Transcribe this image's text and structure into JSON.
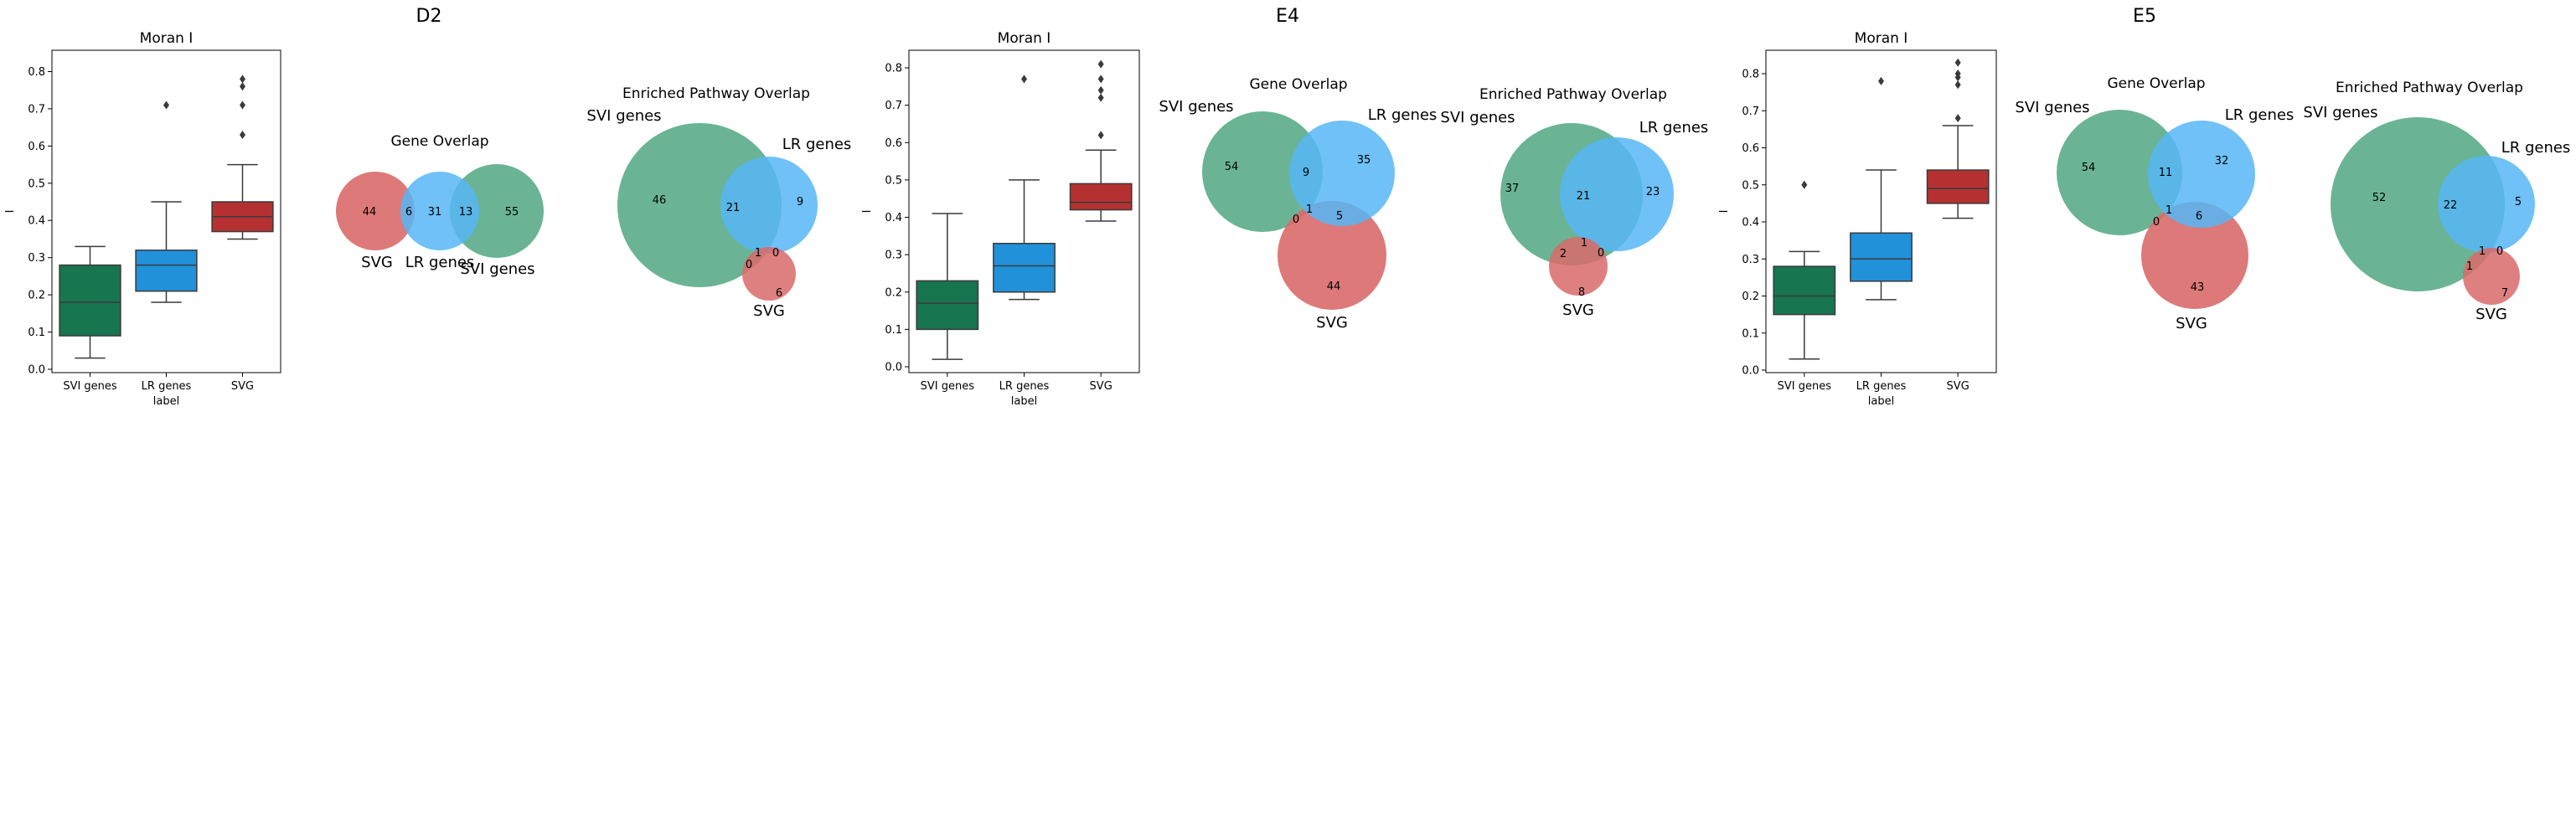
{
  "panels": [
    {
      "group_title": "D2",
      "boxplot": {
        "title": "Moran I",
        "xlabel": "label",
        "ylabel": "I",
        "yticks": [
          "0.0",
          "0.1",
          "0.2",
          "0.3",
          "0.4",
          "0.5",
          "0.6",
          "0.7",
          "0.8"
        ],
        "boxes": [
          {
            "category": "SVI genes",
            "whislo": 0.03,
            "q1": 0.09,
            "med": 0.18,
            "q3": 0.28,
            "whishi": 0.33,
            "fliers": []
          },
          {
            "category": "LR genes",
            "whislo": 0.18,
            "q1": 0.21,
            "med": 0.28,
            "q3": 0.32,
            "whishi": 0.45,
            "fliers": [
              0.71
            ]
          },
          {
            "category": "SVG",
            "whislo": 0.35,
            "q1": 0.37,
            "med": 0.41,
            "q3": 0.45,
            "whishi": 0.55,
            "fliers": [
              0.63,
              0.71,
              0.76,
              0.78
            ]
          }
        ]
      },
      "gene_overlap": {
        "title": "Gene Overlap",
        "labels": [
          "SVG",
          "LR genes",
          "SVI genes"
        ],
        "numbers": [
          "44",
          "6",
          "31",
          "13",
          "55"
        ]
      },
      "pathway_overlap": {
        "title": "Enriched Pathway Overlap",
        "labels": [
          "SVI genes",
          "LR genes",
          "SVG"
        ],
        "numbers": [
          "46",
          "21",
          "9",
          "1",
          "0",
          "0",
          "6"
        ]
      }
    },
    {
      "group_title": "E4",
      "boxplot": {
        "title": "Moran I",
        "xlabel": "label",
        "ylabel": "I",
        "yticks": [
          "0.0",
          "0.1",
          "0.2",
          "0.3",
          "0.4",
          "0.5",
          "0.6",
          "0.7",
          "0.8"
        ],
        "boxes": [
          {
            "category": "SVI genes",
            "whislo": 0.02,
            "q1": 0.1,
            "med": 0.17,
            "q3": 0.23,
            "whishi": 0.41,
            "fliers": []
          },
          {
            "category": "LR genes",
            "whislo": 0.18,
            "q1": 0.2,
            "med": 0.27,
            "q3": 0.33,
            "whishi": 0.5,
            "fliers": [
              0.77
            ]
          },
          {
            "category": "SVG",
            "whislo": 0.39,
            "q1": 0.42,
            "med": 0.44,
            "q3": 0.49,
            "whishi": 0.58,
            "fliers": [
              0.62,
              0.72,
              0.74,
              0.77,
              0.81
            ]
          }
        ]
      },
      "gene_overlap": {
        "title": "Gene Overlap",
        "labels": [
          "SVI genes",
          "LR genes",
          "SVG"
        ],
        "numbers": [
          "54",
          "9",
          "35",
          "1",
          "0",
          "5",
          "44"
        ]
      },
      "pathway_overlap": {
        "title": "Enriched Pathway Overlap",
        "labels": [
          "SVI genes",
          "LR genes",
          "SVG"
        ],
        "numbers": [
          "37",
          "21",
          "23",
          "2",
          "1",
          "0",
          "8"
        ]
      }
    },
    {
      "group_title": "E5",
      "boxplot": {
        "title": "Moran I",
        "xlabel": "label",
        "ylabel": "I",
        "yticks": [
          "0.0",
          "0.1",
          "0.2",
          "0.3",
          "0.4",
          "0.5",
          "0.6",
          "0.7",
          "0.8"
        ],
        "boxes": [
          {
            "category": "SVI genes",
            "whislo": 0.03,
            "q1": 0.15,
            "med": 0.2,
            "q3": 0.28,
            "whishi": 0.32,
            "fliers": [
              0.5
            ]
          },
          {
            "category": "LR genes",
            "whislo": 0.19,
            "q1": 0.24,
            "med": 0.3,
            "q3": 0.37,
            "whishi": 0.54,
            "fliers": [
              0.78
            ]
          },
          {
            "category": "SVG",
            "whislo": 0.41,
            "q1": 0.45,
            "med": 0.49,
            "q3": 0.54,
            "whishi": 0.66,
            "fliers": [
              0.68,
              0.77,
              0.79,
              0.8,
              0.83
            ]
          }
        ]
      },
      "gene_overlap": {
        "title": "Gene Overlap",
        "labels": [
          "SVI genes",
          "LR genes",
          "SVG"
        ],
        "numbers": [
          "54",
          "11",
          "32",
          "1",
          "0",
          "6",
          "43"
        ]
      },
      "pathway_overlap": {
        "title": "Enriched Pathway Overlap",
        "labels": [
          "SVI genes",
          "LR genes",
          "SVG"
        ],
        "numbers": [
          "52",
          "22",
          "5",
          "1",
          "1",
          "0",
          "7"
        ]
      }
    }
  ],
  "colors": {
    "svi_box": "#177550",
    "lr_box": "#2191da",
    "svg_box": "#b53131",
    "venn_svi": "#5aac8a",
    "venn_lr": "#56b6f6",
    "venn_svg": "#d96a6a"
  },
  "chart_data": [
    {
      "type": "box",
      "title": "Moran I",
      "xlabel": "label",
      "ylabel": "I",
      "categories": [
        "SVI genes",
        "LR genes",
        "SVG"
      ],
      "ylim": [
        0,
        0.85
      ],
      "medians": [
        0.18,
        0.28,
        0.41
      ]
    },
    {
      "type": "venn",
      "title": "Gene Overlap",
      "sets": [
        "SVG",
        "LR genes",
        "SVI genes"
      ],
      "regions": {
        "SVG only": 44,
        "SVG∩LR": 6,
        "LR only": 31,
        "LR∩SVI": 13,
        "SVI only": 55
      }
    },
    {
      "type": "venn",
      "title": "Enriched Pathway Overlap",
      "sets": [
        "SVI genes",
        "LR genes",
        "SVG"
      ],
      "regions": {
        "SVI only": 46,
        "SVI∩LR": 21,
        "LR only": 9,
        "SVI∩LR∩SVG": 1,
        "SVI∩SVG": 0,
        "LR∩SVG": 0,
        "SVG only": 6
      }
    },
    {
      "type": "box",
      "title": "Moran I",
      "xlabel": "label",
      "ylabel": "I",
      "categories": [
        "SVI genes",
        "LR genes",
        "SVG"
      ],
      "ylim": [
        0,
        0.85
      ],
      "medians": [
        0.17,
        0.27,
        0.44
      ]
    },
    {
      "type": "venn",
      "title": "Gene Overlap",
      "sets": [
        "SVI genes",
        "LR genes",
        "SVG"
      ],
      "regions": {
        "SVI only": 54,
        "SVI∩LR": 9,
        "LR only": 35,
        "SVI∩LR∩SVG": 1,
        "SVI∩SVG": 0,
        "LR∩SVG": 5,
        "SVG only": 44
      }
    },
    {
      "type": "venn",
      "title": "Enriched Pathway Overlap",
      "sets": [
        "SVI genes",
        "LR genes",
        "SVG"
      ],
      "regions": {
        "SVI only": 37,
        "SVI∩LR": 21,
        "LR only": 23,
        "SVI∩SVG": 2,
        "SVI∩LR∩SVG": 1,
        "LR∩SVG": 0,
        "SVG only": 8
      }
    },
    {
      "type": "box",
      "title": "Moran I",
      "xlabel": "label",
      "ylabel": "I",
      "categories": [
        "SVI genes",
        "LR genes",
        "SVG"
      ],
      "ylim": [
        0,
        0.85
      ],
      "medians": [
        0.2,
        0.3,
        0.49
      ]
    },
    {
      "type": "venn",
      "title": "Gene Overlap",
      "sets": [
        "SVI genes",
        "LR genes",
        "SVG"
      ],
      "regions": {
        "SVI only": 54,
        "SVI∩LR": 11,
        "LR only": 32,
        "SVI∩LR∩SVG": 1,
        "SVI∩SVG": 0,
        "LR∩SVG": 6,
        "SVG only": 43
      }
    },
    {
      "type": "venn",
      "title": "Enriched Pathway Overlap",
      "sets": [
        "SVI genes",
        "LR genes",
        "SVG"
      ],
      "regions": {
        "SVI only": 52,
        "SVI∩LR": 22,
        "LR only": 5,
        "SVI∩LR∩SVG": 1,
        "SVI∩SVG": 1,
        "LR∩SVG": 0,
        "SVG only": 7
      }
    }
  ]
}
